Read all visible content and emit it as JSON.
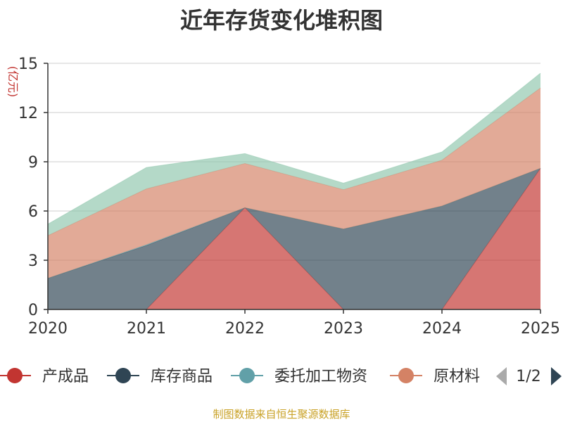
{
  "title": "近年存货变化堆积图",
  "unit_label": "(亿元)",
  "source_note": "制图数据来自恒生聚源数据库",
  "legend_pager": "1/2",
  "colors": {
    "产成品": "#c23531",
    "库存商品": "#2f4554",
    "委托加工物资": "#61a0a8",
    "原材料": "#d48265",
    "hidden_series": "#91c7ae"
  },
  "chart_data": {
    "type": "area",
    "stacked": true,
    "x": [
      "2020",
      "2021",
      "2022",
      "2023",
      "2024",
      "2025"
    ],
    "ylim": [
      0,
      15
    ],
    "yticks": [
      0,
      3,
      6,
      9,
      12,
      15
    ],
    "ylabel": "(亿元)",
    "grid": true,
    "legend_position": "bottom",
    "series": [
      {
        "name": "产成品",
        "values": [
          0,
          0,
          6.2,
          0,
          0,
          8.6
        ]
      },
      {
        "name": "库存商品",
        "values": [
          1.9,
          3.9,
          0,
          4.9,
          6.3,
          0
        ]
      },
      {
        "name": "委托加工物资",
        "values": [
          0,
          0.05,
          0,
          0,
          0,
          0
        ]
      },
      {
        "name": "原材料",
        "values": [
          2.6,
          3.4,
          2.7,
          2.4,
          2.8,
          4.9
        ]
      },
      {
        "values": [
          0.7,
          1.3,
          0.6,
          0.4,
          0.5,
          0.9
        ]
      }
    ]
  }
}
